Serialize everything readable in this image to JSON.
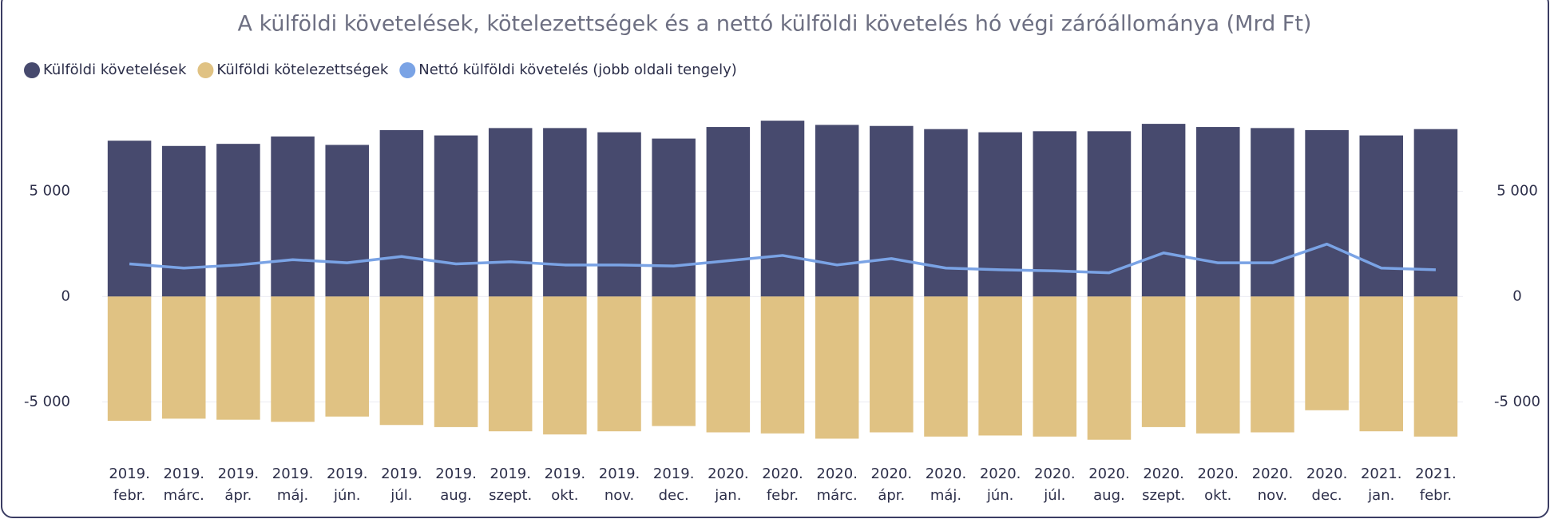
{
  "chart_data": {
    "type": "bar",
    "title": "A külföldi követelések, kötelezettségek és a nettó külföldi követelés hó végi záróállománya (Mrd Ft)",
    "categories": [
      [
        "2019.",
        "febr."
      ],
      [
        "2019.",
        "márc."
      ],
      [
        "2019.",
        "ápr."
      ],
      [
        "2019.",
        "máj."
      ],
      [
        "2019.",
        "jún."
      ],
      [
        "2019.",
        "júl."
      ],
      [
        "2019.",
        "aug."
      ],
      [
        "2019.",
        "szept."
      ],
      [
        "2019.",
        "okt."
      ],
      [
        "2019.",
        "nov."
      ],
      [
        "2019.",
        "dec."
      ],
      [
        "2020.",
        "jan."
      ],
      [
        "2020.",
        "febr."
      ],
      [
        "2020.",
        "márc."
      ],
      [
        "2020.",
        "ápr."
      ],
      [
        "2020.",
        "máj."
      ],
      [
        "2020.",
        "jún."
      ],
      [
        "2020.",
        "júl."
      ],
      [
        "2020.",
        "aug."
      ],
      [
        "2020.",
        "szept."
      ],
      [
        "2020.",
        "okt."
      ],
      [
        "2020.",
        "nov."
      ],
      [
        "2020.",
        "dec."
      ],
      [
        "2021.",
        "jan."
      ],
      [
        "2021.",
        "febr."
      ]
    ],
    "series": [
      {
        "name": "Külföldi követelések",
        "type": "bar",
        "color": "#474a6e",
        "values": [
          7400,
          7150,
          7250,
          7600,
          7200,
          7900,
          7650,
          8000,
          8000,
          7800,
          7500,
          8050,
          8350,
          8150,
          8100,
          7950,
          7800,
          7850,
          7850,
          8200,
          8050,
          8000,
          7900,
          7650,
          7950
        ]
      },
      {
        "name": "Külföldi kötelezettségek",
        "type": "bar",
        "color": "#e0c283",
        "values": [
          -5900,
          -5800,
          -5850,
          -5950,
          -5700,
          -6100,
          -6200,
          -6400,
          -6550,
          -6400,
          -6150,
          -6450,
          -6500,
          -6750,
          -6450,
          -6650,
          -6600,
          -6650,
          -6800,
          -6200,
          -6500,
          -6450,
          -5400,
          -6400,
          -6650
        ]
      },
      {
        "name": "Nettó külföldi követelés (jobb oldali tengely)",
        "type": "line",
        "axis": "y2",
        "color": "#7aa3e5",
        "values": [
          1550,
          1350,
          1500,
          1750,
          1600,
          1900,
          1550,
          1650,
          1500,
          1500,
          1450,
          1700,
          1950,
          1500,
          1800,
          1350,
          1270,
          1220,
          1130,
          2070,
          1600,
          1600,
          2490,
          1350,
          1270
        ]
      }
    ],
    "ylim": [
      -7000,
      9000
    ],
    "yticks": [
      {
        "value": -5000,
        "label": "-5 000"
      },
      0,
      {
        "value": 5000,
        "label": "5 000"
      }
    ],
    "y2lim": [
      -7000,
      9000
    ],
    "y2ticks": [
      {
        "value": -5000,
        "label": "-5 000"
      },
      0,
      {
        "value": 5000,
        "label": "5 000"
      }
    ],
    "grid": true,
    "legend": "top-left"
  }
}
